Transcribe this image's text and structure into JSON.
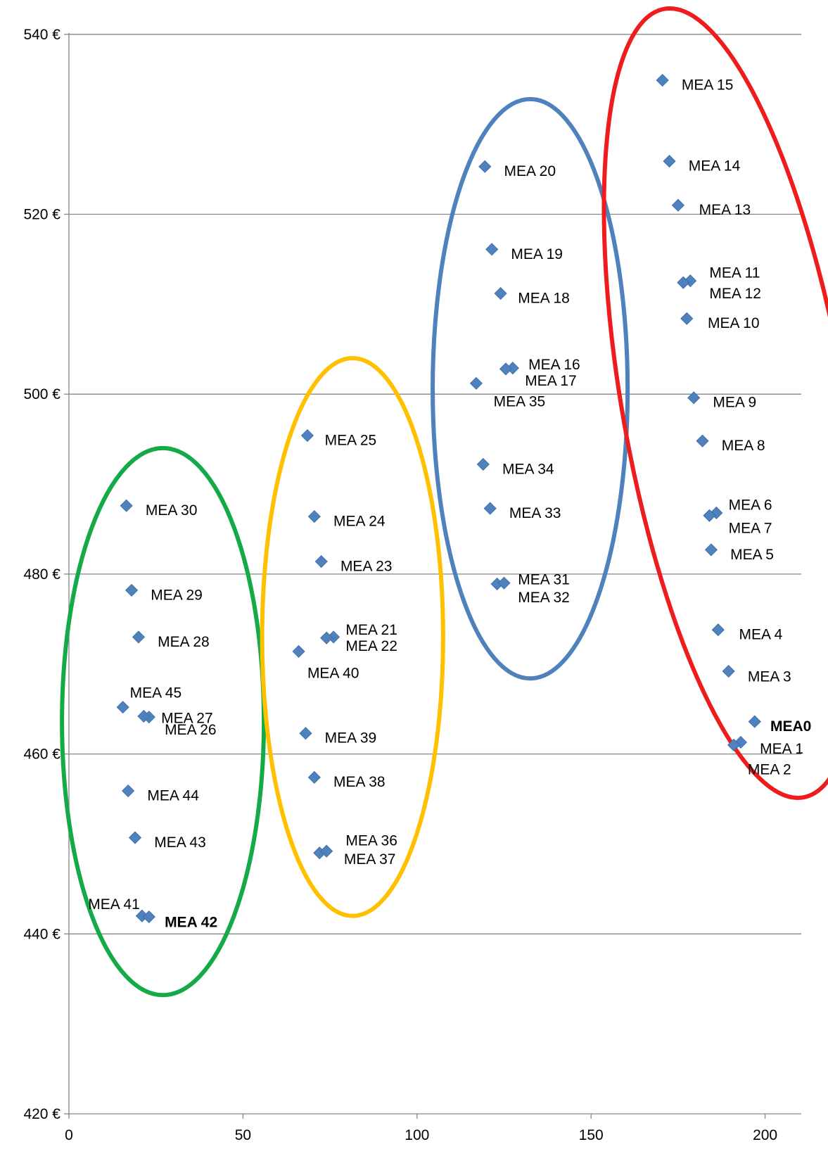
{
  "chart_data": {
    "type": "scatter",
    "title": "",
    "xlabel": "",
    "ylabel": "",
    "xlim": [
      0,
      210
    ],
    "ylim": [
      420,
      542
    ],
    "x_ticks": [
      0,
      50,
      100,
      150,
      200
    ],
    "x_tick_labels": [
      "0",
      "50",
      "100",
      "150",
      "200"
    ],
    "y_ticks": [
      420,
      440,
      460,
      480,
      500,
      520,
      540
    ],
    "y_tick_labels": [
      "420 €",
      "440 €",
      "460 €",
      "480 €",
      "500 €",
      "520 €",
      "540 €"
    ],
    "grid": "horizontal",
    "marker": "diamond",
    "marker_color": "#4F81BD",
    "points": [
      {
        "x": 197,
        "y": 463.6
      },
      {
        "x": 193,
        "y": 461.3
      },
      {
        "x": 191,
        "y": 461.0
      },
      {
        "x": 189.5,
        "y": 469.2
      },
      {
        "x": 186.5,
        "y": 473.8
      },
      {
        "x": 184.5,
        "y": 482.7
      },
      {
        "x": 186,
        "y": 486.8
      },
      {
        "x": 184,
        "y": 486.5
      },
      {
        "x": 182,
        "y": 494.8
      },
      {
        "x": 179.5,
        "y": 499.6
      },
      {
        "x": 177.5,
        "y": 508.4
      },
      {
        "x": 178.5,
        "y": 512.6
      },
      {
        "x": 176.5,
        "y": 512.4
      },
      {
        "x": 175,
        "y": 521.0
      },
      {
        "x": 172.5,
        "y": 525.9
      },
      {
        "x": 170.5,
        "y": 534.9
      },
      {
        "x": 127.5,
        "y": 502.9
      },
      {
        "x": 125.5,
        "y": 502.8
      },
      {
        "x": 124,
        "y": 511.2
      },
      {
        "x": 121.5,
        "y": 516.1
      },
      {
        "x": 119.5,
        "y": 525.3
      },
      {
        "x": 76,
        "y": 473.0
      },
      {
        "x": 74,
        "y": 472.9
      },
      {
        "x": 72.5,
        "y": 481.4
      },
      {
        "x": 70.5,
        "y": 486.4
      },
      {
        "x": 68.5,
        "y": 495.4
      },
      {
        "x": 23,
        "y": 464.1
      },
      {
        "x": 21.5,
        "y": 464.2
      },
      {
        "x": 20,
        "y": 473.0
      },
      {
        "x": 18,
        "y": 478.2
      },
      {
        "x": 16.5,
        "y": 487.6
      },
      {
        "x": 123,
        "y": 478.9
      },
      {
        "x": 125,
        "y": 479.0
      },
      {
        "x": 121,
        "y": 487.3
      },
      {
        "x": 119,
        "y": 492.2
      },
      {
        "x": 117,
        "y": 501.2
      },
      {
        "x": 72,
        "y": 449.0
      },
      {
        "x": 74,
        "y": 449.2
      },
      {
        "x": 70.5,
        "y": 457.4
      },
      {
        "x": 68,
        "y": 462.3
      },
      {
        "x": 66,
        "y": 471.4
      },
      {
        "x": 21,
        "y": 442.0
      },
      {
        "x": 23,
        "y": 441.9
      },
      {
        "x": 19,
        "y": 450.7
      },
      {
        "x": 17,
        "y": 455.9
      },
      {
        "x": 15.5,
        "y": 465.2
      }
    ],
    "labels": [
      {
        "text": "MEA0",
        "x": 201.5,
        "y": 463.1,
        "color": "#EE1C1C",
        "bold": true
      },
      {
        "text": "MEA 1",
        "x": 198.5,
        "y": 460.6
      },
      {
        "x": 195,
        "y": 458.3,
        "text": "MEA 2"
      },
      {
        "text": "MEA 3",
        "x": 195,
        "y": 468.6
      },
      {
        "text": "MEA 4",
        "x": 192.5,
        "y": 473.3
      },
      {
        "text": "MEA 5",
        "x": 190,
        "y": 482.2
      },
      {
        "text": "MEA 6",
        "x": 189.5,
        "y": 487.7
      },
      {
        "text": "MEA 7",
        "x": 189.5,
        "y": 485.1
      },
      {
        "text": "MEA 8",
        "x": 187.5,
        "y": 494.3
      },
      {
        "text": "MEA 9",
        "x": 185,
        "y": 499.1
      },
      {
        "text": "MEA 10",
        "x": 183.5,
        "y": 507.9
      },
      {
        "text": "MEA 11",
        "x": 184,
        "y": 513.5
      },
      {
        "text": "MEA 12",
        "x": 184,
        "y": 511.2
      },
      {
        "text": "MEA 13",
        "x": 181,
        "y": 520.5
      },
      {
        "text": "MEA 14",
        "x": 178,
        "y": 525.4
      },
      {
        "text": "MEA 15",
        "x": 176,
        "y": 534.4
      },
      {
        "text": "MEA 16",
        "x": 132,
        "y": 503.3
      },
      {
        "text": "MEA 17",
        "x": 131,
        "y": 501.5
      },
      {
        "text": "MEA 18",
        "x": 129,
        "y": 510.7
      },
      {
        "text": "MEA 19",
        "x": 127,
        "y": 515.6
      },
      {
        "text": "MEA 20",
        "x": 125,
        "y": 524.8
      },
      {
        "text": "MEA 21",
        "x": 79.5,
        "y": 473.8
      },
      {
        "text": "MEA 22",
        "x": 79.5,
        "y": 472.0
      },
      {
        "text": "MEA 23",
        "x": 78,
        "y": 480.9
      },
      {
        "text": "MEA 24",
        "x": 76,
        "y": 485.9
      },
      {
        "text": "MEA 25",
        "x": 73.5,
        "y": 494.9
      },
      {
        "text": "MEA 26",
        "x": 27.5,
        "y": 462.7
      },
      {
        "text": "MEA 27",
        "x": 26.5,
        "y": 464.0
      },
      {
        "text": "MEA 28",
        "x": 25.5,
        "y": 472.5
      },
      {
        "text": "MEA 29",
        "x": 23.5,
        "y": 477.7
      },
      {
        "text": "MEA 30",
        "x": 22,
        "y": 487.1
      },
      {
        "text": "MEA 31",
        "x": 129,
        "y": 479.4
      },
      {
        "text": "MEA 32",
        "x": 129,
        "y": 477.4
      },
      {
        "text": "MEA 33",
        "x": 126.5,
        "y": 486.8
      },
      {
        "text": "MEA 34",
        "x": 124.5,
        "y": 491.7
      },
      {
        "text": "MEA 35",
        "x": 122,
        "y": 499.2
      },
      {
        "text": "MEA 36",
        "x": 79.5,
        "y": 450.4
      },
      {
        "text": "MEA 37",
        "x": 79,
        "y": 448.3
      },
      {
        "text": "MEA 38",
        "x": 76,
        "y": 456.9
      },
      {
        "text": "MEA 39",
        "x": 73.5,
        "y": 461.8
      },
      {
        "text": "MEA 40",
        "x": 68.5,
        "y": 469.0
      },
      {
        "text": "MEA 41",
        "x": 5.5,
        "y": 443.3
      },
      {
        "text": "MEA 42",
        "x": 27.5,
        "y": 441.3,
        "color": "#14AA48",
        "bold": true
      },
      {
        "text": "MEA 43",
        "x": 24.5,
        "y": 450.2
      },
      {
        "text": "MEA 44",
        "x": 22.5,
        "y": 455.4
      },
      {
        "text": "MEA 45",
        "x": 17.5,
        "y": 466.8
      }
    ],
    "annotations": [
      {
        "shape": "ellipse",
        "color": "#14AA48",
        "cx": 27,
        "cy": 463.6,
        "rx": 29,
        "ry": 30.4
      },
      {
        "shape": "ellipse",
        "color": "#FFC000",
        "cx": 81.5,
        "cy": 473.0,
        "rx": 26,
        "ry": 31.0
      },
      {
        "shape": "ellipse",
        "color": "#4F81BD",
        "cx": 132.5,
        "cy": 500.6,
        "rx": 28,
        "ry": 32.2
      },
      {
        "shape": "ellipse",
        "color": "#EE1C1C",
        "cx": 191,
        "cy": 499.0,
        "rx": 32,
        "ry": 44.5,
        "rotation": -10
      }
    ]
  }
}
